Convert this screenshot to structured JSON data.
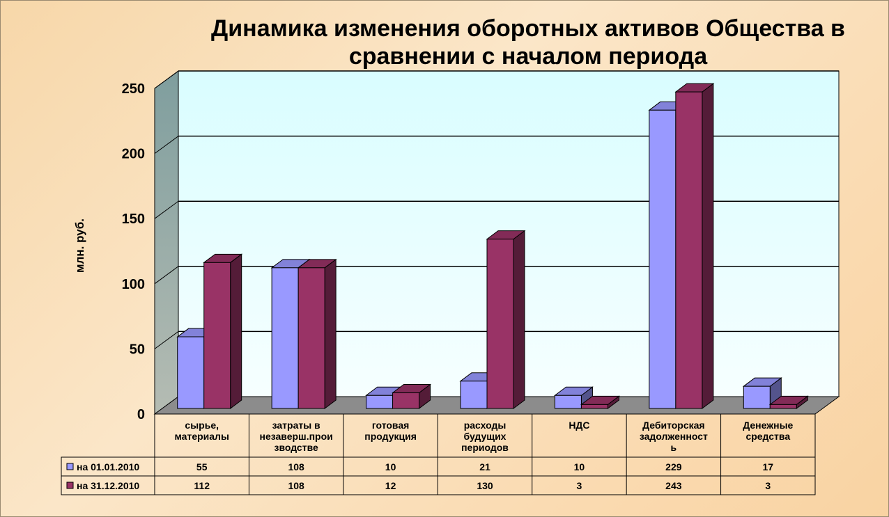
{
  "chart_data": {
    "type": "bar",
    "title": "Динамика изменения оборотных активов Общества в сравнении с началом периода",
    "title_lines": [
      "Динамика изменения оборотных активов Общества в",
      "сравнении с началом периода"
    ],
    "ylabel": "млн. руб.",
    "ylim": [
      0,
      250
    ],
    "yticks": [
      "0",
      "50",
      "100",
      "150",
      "200",
      "250"
    ],
    "categories": [
      [
        "сырье,",
        "материалы"
      ],
      [
        "затраты в",
        "незаверш.прои",
        "зводстве"
      ],
      [
        "готовая",
        "продукция"
      ],
      [
        "расходы",
        "будущих",
        "периодов"
      ],
      [
        "НДС"
      ],
      [
        "Дебиторская",
        "задолженност",
        "ь"
      ],
      [
        "Денежные",
        "средства"
      ]
    ],
    "series": [
      {
        "name": "на 01.01.2010",
        "values": [
          55,
          108,
          10,
          21,
          10,
          229,
          17
        ],
        "color": "#9999ff"
      },
      {
        "name": "на 31.12.2010",
        "values": [
          112,
          108,
          12,
          130,
          3,
          243,
          3
        ],
        "color": "#993366"
      }
    ],
    "data_table": true,
    "grid": true,
    "legend": "data-table"
  }
}
